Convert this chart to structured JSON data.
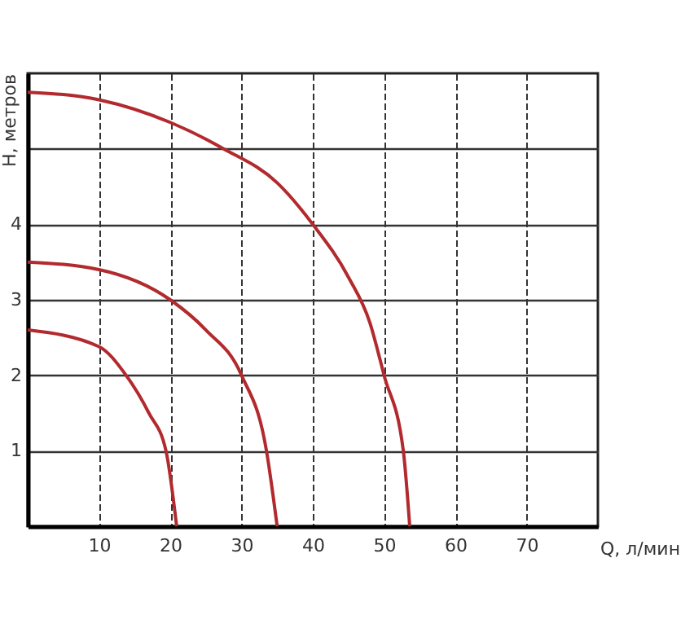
{
  "chart_data": {
    "type": "line",
    "xlabel": "Q, л/мин",
    "ylabel": "H, метров",
    "xlim": [
      0,
      80
    ],
    "ylim": [
      0,
      6
    ],
    "xticks": [
      10,
      20,
      30,
      40,
      50,
      60,
      70
    ],
    "yticks": [
      1,
      2,
      3,
      4,
      {
        "value": 5,
        "label": null
      }
    ],
    "grid": true,
    "line_style": "solid",
    "series": [
      {
        "color": "#b22a2e",
        "x": [
          0,
          10,
          20,
          27.5,
          35,
          40,
          45,
          48,
          50,
          52.7,
          53.6
        ],
        "values": [
          5.75,
          5.65,
          5.35,
          5,
          4.55,
          4,
          3.3,
          2.7,
          2,
          1,
          0
        ]
      },
      {
        "color": "#b22a2e",
        "x": [
          0,
          10,
          20,
          25,
          30,
          33.5,
          35
        ],
        "values": [
          3.5,
          3.4,
          3,
          2.6,
          2,
          1,
          0
        ]
      },
      {
        "color": "#b22a2e",
        "x": [
          0,
          10,
          13.8,
          17,
          19.4,
          20.9
        ],
        "values": [
          2.6,
          2.38,
          2,
          1.5,
          1,
          0
        ]
      }
    ]
  }
}
